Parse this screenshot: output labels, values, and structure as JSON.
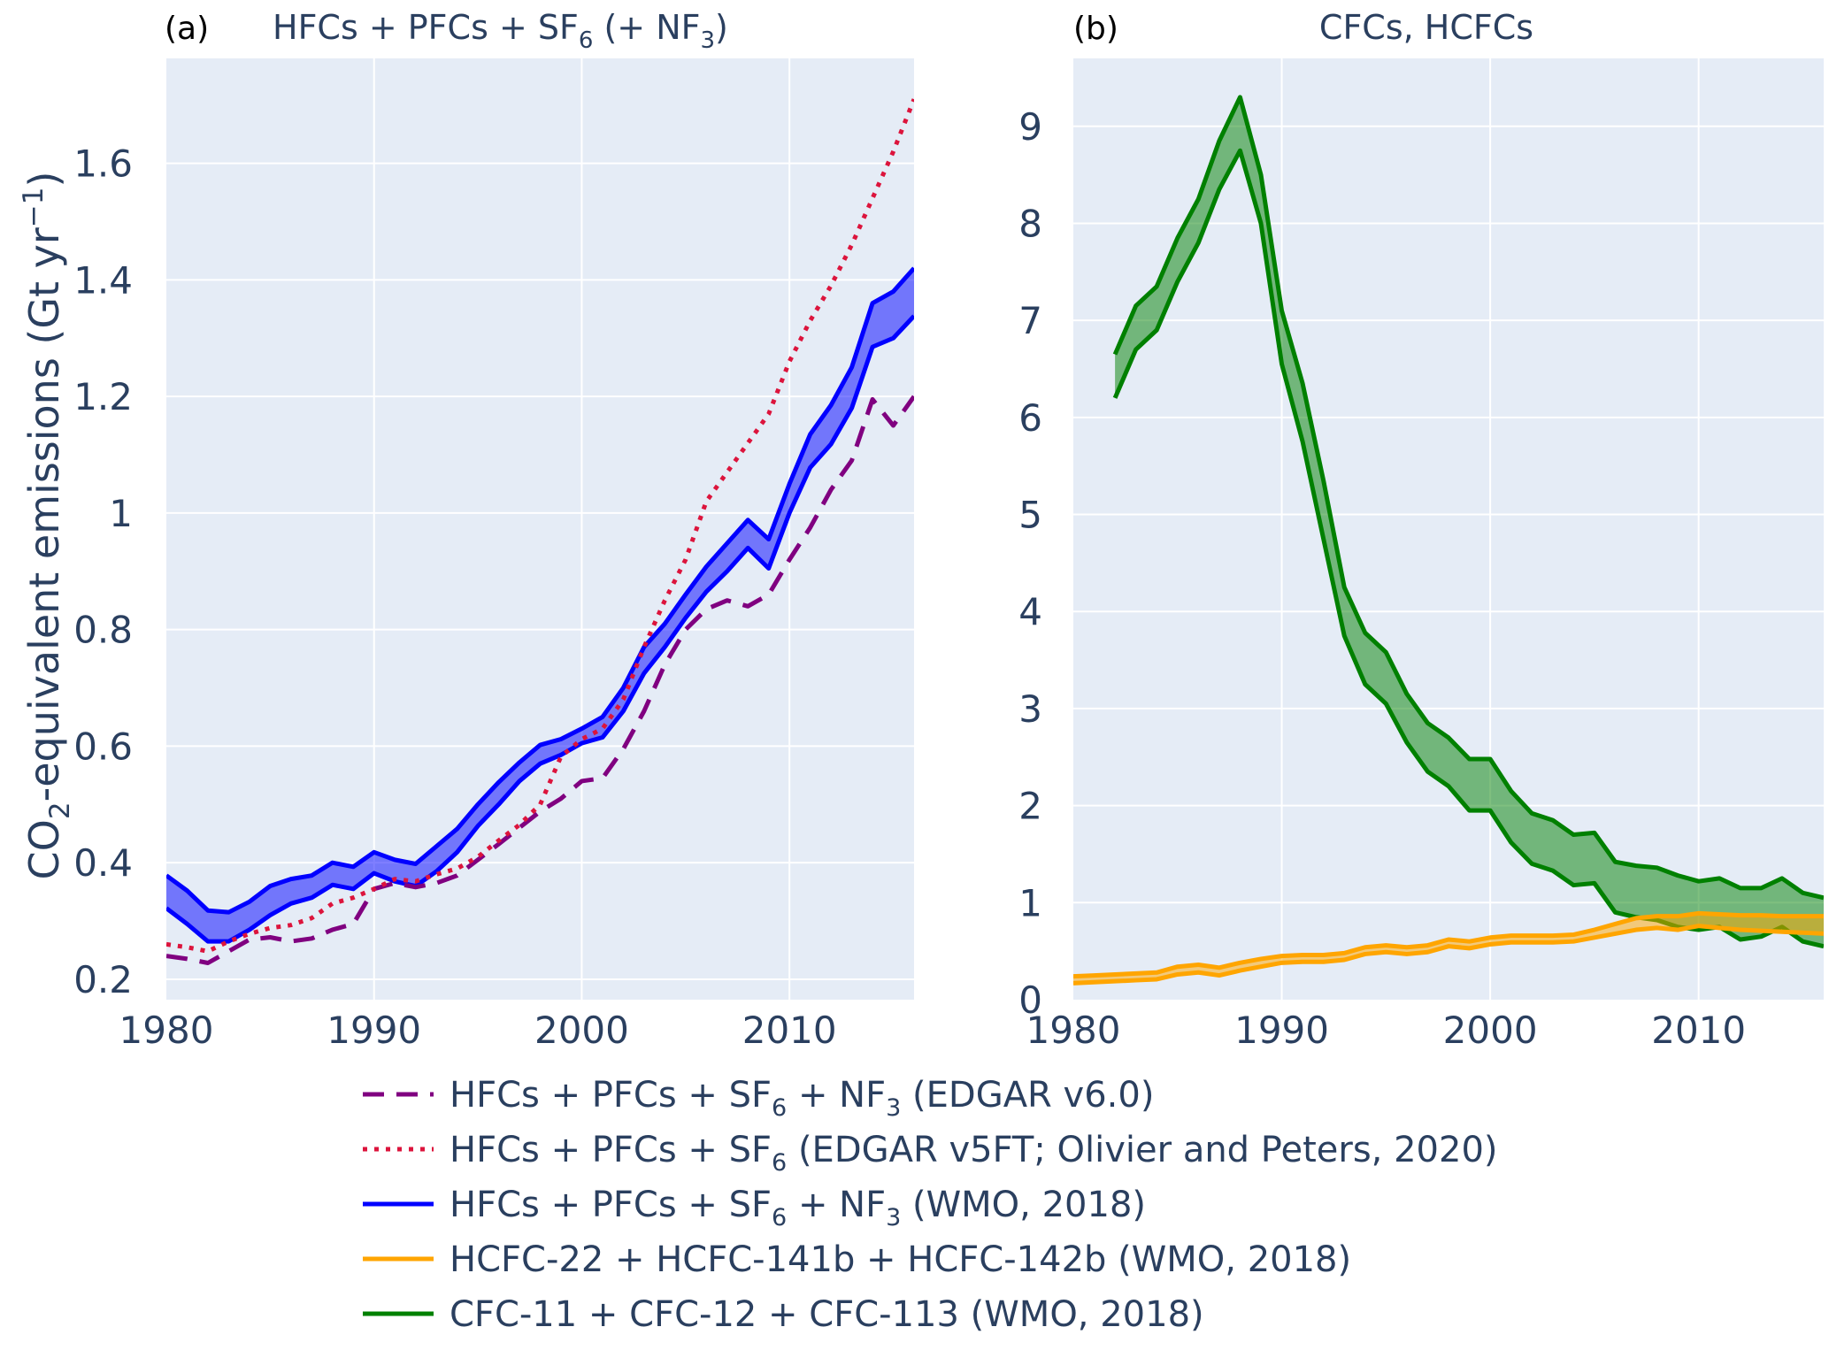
{
  "chart_data": [
    {
      "type": "area",
      "panel_label": "(a)",
      "title": "HFCs + PFCs + SF6 (+ NF3)",
      "ylabel": "CO2-equivalent emissions (Gt yr-1)",
      "xlim": [
        1980,
        2016
      ],
      "ylim": [
        0.165,
        1.78
      ],
      "xticks": [
        1980,
        1990,
        2000,
        2010
      ],
      "yticks": [
        0.2,
        0.4,
        0.6,
        0.8,
        1,
        1.2,
        1.4,
        1.6
      ],
      "ytick_labels": [
        "0.2",
        "0.4",
        "0.6",
        "0.8",
        "1",
        "1.2",
        "1.4",
        "1.6"
      ],
      "series": [
        {
          "name": "HFCs + PFCs + SF6 + NF3 (WMO, 2018)",
          "style": "band",
          "color": "#0000ff",
          "fill": "rgba(0,0,255,0.5)",
          "x": [
            1980,
            1981,
            1982,
            1983,
            1984,
            1985,
            1986,
            1987,
            1988,
            1989,
            1990,
            1991,
            1992,
            1993,
            1994,
            1995,
            1996,
            1997,
            1998,
            1999,
            2000,
            2001,
            2002,
            2003,
            2004,
            2005,
            2006,
            2007,
            2008,
            2009,
            2010,
            2011,
            2012,
            2013,
            2014,
            2015,
            2016
          ],
          "upper": [
            0.378,
            0.352,
            0.318,
            0.315,
            0.333,
            0.36,
            0.372,
            0.378,
            0.4,
            0.393,
            0.418,
            0.405,
            0.398,
            0.428,
            0.458,
            0.5,
            0.538,
            0.572,
            0.602,
            0.612,
            0.63,
            0.65,
            0.7,
            0.77,
            0.81,
            0.86,
            0.908,
            0.948,
            0.988,
            0.955,
            1.05,
            1.135,
            1.185,
            1.25,
            1.36,
            1.38,
            1.42
          ],
          "lower": [
            0.322,
            0.295,
            0.265,
            0.265,
            0.285,
            0.31,
            0.33,
            0.34,
            0.362,
            0.355,
            0.382,
            0.368,
            0.36,
            0.385,
            0.418,
            0.463,
            0.5,
            0.54,
            0.57,
            0.585,
            0.605,
            0.615,
            0.66,
            0.725,
            0.77,
            0.82,
            0.865,
            0.9,
            0.94,
            0.905,
            1.0,
            1.078,
            1.118,
            1.18,
            1.285,
            1.3,
            1.338
          ]
        },
        {
          "name": "HFCs + PFCs + SF6 + NF3 (EDGAR v6.0)",
          "style": "dash",
          "color": "#800080",
          "x": [
            1980,
            1981,
            1982,
            1983,
            1984,
            1985,
            1986,
            1987,
            1988,
            1989,
            1990,
            1991,
            1992,
            1993,
            1994,
            1995,
            1996,
            1997,
            1998,
            1999,
            2000,
            2001,
            2002,
            2003,
            2004,
            2005,
            2006,
            2007,
            2008,
            2009,
            2010,
            2011,
            2012,
            2013,
            2014,
            2015,
            2016
          ],
          "values": [
            0.24,
            0.235,
            0.228,
            0.248,
            0.268,
            0.272,
            0.265,
            0.27,
            0.285,
            0.295,
            0.355,
            0.365,
            0.358,
            0.365,
            0.378,
            0.405,
            0.432,
            0.46,
            0.488,
            0.51,
            0.54,
            0.545,
            0.595,
            0.66,
            0.74,
            0.8,
            0.835,
            0.85,
            0.84,
            0.86,
            0.92,
            0.975,
            1.04,
            1.09,
            1.195,
            1.15,
            1.2
          ]
        },
        {
          "name": "HFCs + PFCs + SF6 (EDGAR v5FT; Olivier and Peters, 2020)",
          "style": "dot",
          "color": "#dc143c",
          "x": [
            1980,
            1981,
            1982,
            1983,
            1984,
            1985,
            1986,
            1987,
            1988,
            1989,
            1990,
            1991,
            1992,
            1993,
            1994,
            1995,
            1996,
            1997,
            1998,
            1999,
            2000,
            2001,
            2002,
            2003,
            2004,
            2005,
            2006,
            2007,
            2008,
            2009,
            2010,
            2011,
            2012,
            2013,
            2014,
            2015,
            2016
          ],
          "values": [
            0.26,
            0.255,
            0.248,
            0.265,
            0.278,
            0.288,
            0.293,
            0.305,
            0.33,
            0.34,
            0.355,
            0.372,
            0.368,
            0.38,
            0.39,
            0.41,
            0.438,
            0.465,
            0.5,
            0.582,
            0.612,
            0.63,
            0.68,
            0.77,
            0.85,
            0.92,
            1.02,
            1.07,
            1.12,
            1.17,
            1.26,
            1.33,
            1.39,
            1.46,
            1.54,
            1.62,
            1.71
          ]
        }
      ]
    },
    {
      "type": "area",
      "panel_label": "(b)",
      "title": "CFCs, HCFCs",
      "xlim": [
        1980,
        2016
      ],
      "ylim": [
        0,
        9.7
      ],
      "xticks": [
        1980,
        1990,
        2000,
        2010
      ],
      "yticks": [
        0,
        1,
        2,
        3,
        4,
        5,
        6,
        7,
        8,
        9
      ],
      "ytick_labels": [
        "0",
        "1",
        "2",
        "3",
        "4",
        "5",
        "6",
        "7",
        "8",
        "9"
      ],
      "series": [
        {
          "name": "CFC-11 + CFC-12 + CFC-113 (WMO, 2018)",
          "style": "band",
          "color": "#008000",
          "fill": "rgba(0,128,0,0.5)",
          "x": [
            1982,
            1983,
            1984,
            1985,
            1986,
            1987,
            1988,
            1989,
            1990,
            1991,
            1992,
            1993,
            1994,
            1995,
            1996,
            1997,
            1998,
            1999,
            2000,
            2001,
            2002,
            2003,
            2004,
            2005,
            2006,
            2007,
            2008,
            2009,
            2010,
            2011,
            2012,
            2013,
            2014,
            2015,
            2016
          ],
          "upper": [
            6.65,
            7.15,
            7.35,
            7.85,
            8.25,
            8.85,
            9.3,
            8.5,
            7.1,
            6.35,
            5.35,
            4.25,
            3.78,
            3.58,
            3.15,
            2.85,
            2.7,
            2.48,
            2.48,
            2.15,
            1.92,
            1.85,
            1.7,
            1.72,
            1.42,
            1.38,
            1.36,
            1.28,
            1.22,
            1.25,
            1.15,
            1.15,
            1.25,
            1.1,
            1.05
          ],
          "lower": [
            6.2,
            6.7,
            6.9,
            7.4,
            7.8,
            8.35,
            8.75,
            8.0,
            6.55,
            5.75,
            4.75,
            3.75,
            3.25,
            3.05,
            2.65,
            2.35,
            2.2,
            1.95,
            1.95,
            1.62,
            1.4,
            1.33,
            1.18,
            1.2,
            0.9,
            0.85,
            0.82,
            0.75,
            0.72,
            0.75,
            0.62,
            0.65,
            0.75,
            0.6,
            0.55
          ]
        },
        {
          "name": "HCFC-22 + HCFC-141b + HCFC-142b (WMO, 2018)",
          "style": "band",
          "color": "#ffa500",
          "fill": "rgba(255,165,0,0.5)",
          "x": [
            1980,
            1981,
            1982,
            1983,
            1984,
            1985,
            1986,
            1987,
            1988,
            1989,
            1990,
            1991,
            1992,
            1993,
            1994,
            1995,
            1996,
            1997,
            1998,
            1999,
            2000,
            2001,
            2002,
            2003,
            2004,
            2005,
            2006,
            2007,
            2008,
            2009,
            2010,
            2011,
            2012,
            2013,
            2014,
            2015,
            2016
          ],
          "upper": [
            0.24,
            0.25,
            0.26,
            0.27,
            0.28,
            0.34,
            0.36,
            0.33,
            0.38,
            0.42,
            0.45,
            0.46,
            0.46,
            0.48,
            0.54,
            0.56,
            0.54,
            0.56,
            0.62,
            0.6,
            0.64,
            0.66,
            0.66,
            0.66,
            0.67,
            0.72,
            0.78,
            0.84,
            0.86,
            0.86,
            0.89,
            0.88,
            0.87,
            0.87,
            0.86,
            0.86,
            0.86
          ],
          "lower": [
            0.17,
            0.18,
            0.19,
            0.2,
            0.21,
            0.26,
            0.28,
            0.25,
            0.3,
            0.34,
            0.38,
            0.39,
            0.39,
            0.41,
            0.47,
            0.49,
            0.47,
            0.49,
            0.55,
            0.53,
            0.57,
            0.59,
            0.59,
            0.59,
            0.6,
            0.64,
            0.68,
            0.72,
            0.74,
            0.72,
            0.76,
            0.74,
            0.72,
            0.71,
            0.7,
            0.69,
            0.68
          ]
        }
      ]
    }
  ],
  "legend": [
    {
      "label": "HFCs + PFCs + SF6 + NF3 (EDGAR v6.0)",
      "style": "dash",
      "color": "#800080"
    },
    {
      "label": "HFCs + PFCs + SF6 (EDGAR v5FT; Olivier and Peters, 2020)",
      "style": "dot",
      "color": "#dc143c"
    },
    {
      "label": "HFCs + PFCs + SF6 + NF3 (WMO, 2018)",
      "style": "solid",
      "color": "#0000ff"
    },
    {
      "label": "HCFC-22 + HCFC-141b + HCFC-142b (WMO, 2018)",
      "style": "solid",
      "color": "#ffa500"
    },
    {
      "label": "CFC-11 + CFC-12 + CFC-113 (WMO, 2018)",
      "style": "solid",
      "color": "#008000"
    }
  ],
  "colors": {
    "plot_bg": "#e5ecf6",
    "grid": "#ffffff",
    "text": "#2a3f5f"
  }
}
